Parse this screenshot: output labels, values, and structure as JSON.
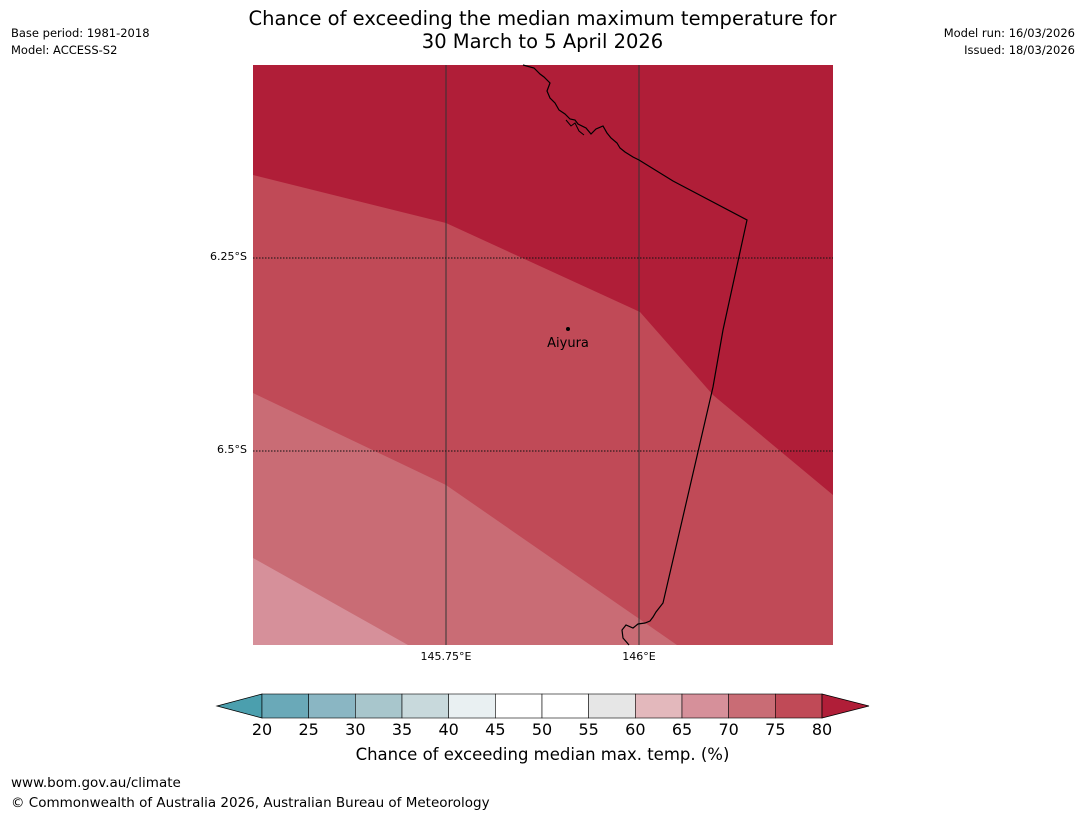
{
  "title_line1": "Chance of exceeding the median maximum temperature for",
  "title_line2": "30 March to 5 April 2026",
  "meta_left": {
    "base_period": "Base period: 1981-2018",
    "model": "Model: ACCESS-S2"
  },
  "meta_right": {
    "model_run": "Model run: 16/03/2026",
    "issued": "Issued: 18/03/2026"
  },
  "map": {
    "latitude_labels": [
      "6.25°S",
      "6.5°S"
    ],
    "longitude_labels": [
      "145.75°E",
      "146°E"
    ],
    "place": {
      "name": "Aiyura",
      "lat_deg_south": 6.35,
      "lon_deg_east": 145.9
    },
    "zone_colors": {
      "c60_65": "#d6909a",
      "c65_70": "#c96c75",
      "c70_75": "#c04a57",
      "c80_plus": "#b01e38"
    }
  },
  "colorbar": {
    "tick_labels": [
      "20",
      "25",
      "30",
      "35",
      "40",
      "45",
      "50",
      "55",
      "60",
      "65",
      "70",
      "75",
      "80"
    ],
    "colors": [
      "#6aa9b8",
      "#8ab6c3",
      "#a8c6cc",
      "#c8d9dc",
      "#e9f0f2",
      "#ffffff",
      "#ffffff",
      "#e6e6e6",
      "#e3b8bc",
      "#d6909a",
      "#c96c75",
      "#c04a57"
    ],
    "under_color": "#4b9fae",
    "over_color": "#b01e38",
    "label": "Chance of exceeding median max. temp. (%)"
  },
  "footer": {
    "url": "www.bom.gov.au/climate",
    "copyright": "© Commonwealth of Australia 2026, Australian Bureau of Meteorology"
  }
}
